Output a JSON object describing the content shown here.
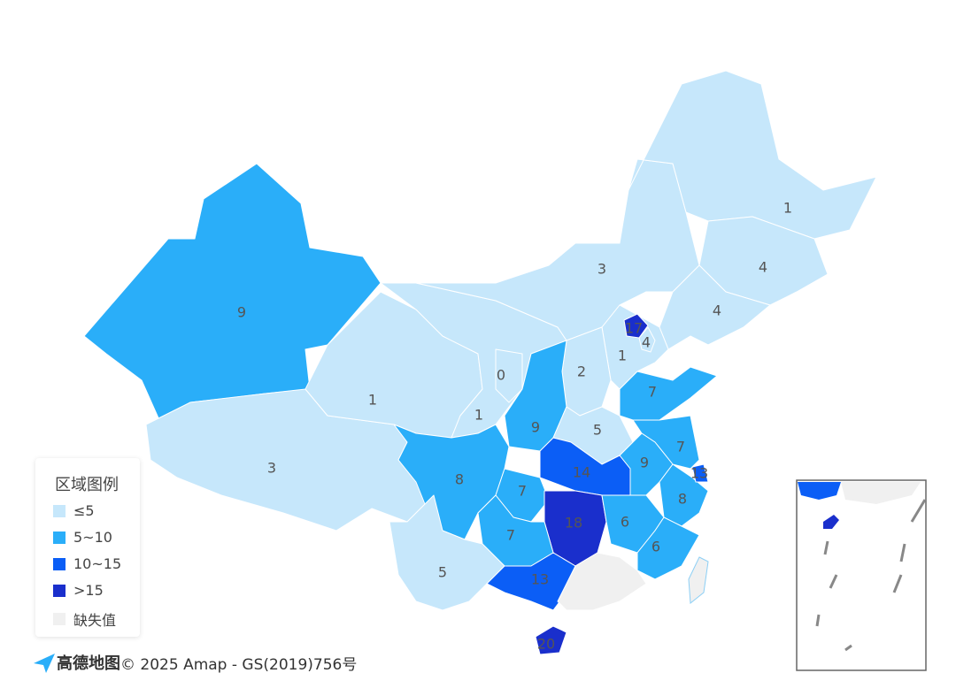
{
  "chart_data": {
    "type": "choropleth",
    "legend": {
      "title": "区域图例",
      "items": [
        {
          "label": "≤5",
          "color": "#c6e7fb"
        },
        {
          "label": "5~10",
          "color": "#2aaef9"
        },
        {
          "label": "10~15",
          "color": "#0b5ef6"
        },
        {
          "label": ">15",
          "color": "#1a2fcc"
        },
        {
          "label": "缺失值",
          "color": "#f0f0f0"
        }
      ]
    },
    "regions": [
      {
        "value": 9,
        "color": "#2aaef9"
      },
      {
        "value": 3,
        "color": "#c6e7fb"
      },
      {
        "value": 1,
        "color": "#c6e7fb"
      },
      {
        "value": 1,
        "color": "#c6e7fb"
      },
      {
        "value": 3,
        "color": "#c6e7fb"
      },
      {
        "value": 1,
        "color": "#c6e7fb"
      },
      {
        "value": 4,
        "color": "#c6e7fb"
      },
      {
        "value": 4,
        "color": "#c6e7fb"
      },
      {
        "value": 1,
        "color": "#c6e7fb"
      },
      {
        "value": 2,
        "color": "#c6e7fb"
      },
      {
        "value": 0,
        "color": "#c6e7fb"
      },
      {
        "value": 9,
        "color": "#2aaef9"
      },
      {
        "value": 5,
        "color": "#c6e7fb"
      },
      {
        "value": 7,
        "color": "#2aaef9"
      },
      {
        "value": 7,
        "color": "#2aaef9"
      },
      {
        "value": 9,
        "color": "#2aaef9"
      },
      {
        "value": 8,
        "color": "#2aaef9"
      },
      {
        "value": 14,
        "color": "#0b5ef6"
      },
      {
        "value": 7,
        "color": "#2aaef9"
      },
      {
        "value": 8,
        "color": "#2aaef9"
      },
      {
        "value": 18,
        "color": "#1a2fcc"
      },
      {
        "value": 6,
        "color": "#2aaef9"
      },
      {
        "value": 6,
        "color": "#2aaef9"
      },
      {
        "value": 7,
        "color": "#2aaef9"
      },
      {
        "value": 5,
        "color": "#c6e7fb"
      },
      {
        "value": 13,
        "color": "#0b5ef6"
      },
      {
        "value": null,
        "color": "#f0f0f0"
      },
      {
        "value": 20,
        "color": "#1a2fcc"
      },
      {
        "value": 17,
        "color": "#1a2fcc"
      },
      {
        "value": 4,
        "color": "#c6e7fb"
      },
      {
        "value": 13,
        "color": "#0b5ef6"
      }
    ]
  },
  "attribution": {
    "logo": "高德地图",
    "text": "© 2025 Amap - GS(2019)756号"
  }
}
